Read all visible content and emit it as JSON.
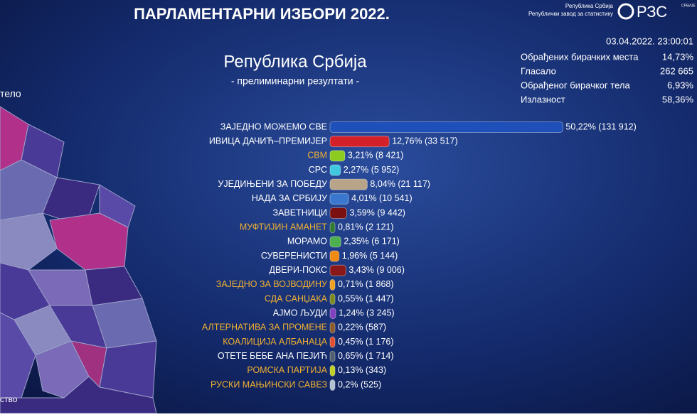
{
  "header": {
    "title": "ПАРЛАМЕНТАРНИ ИЗБОРИ 2022.",
    "org_line1": "Република Србија",
    "org_line2": "Републички завод за статистику",
    "logo": "РЗС",
    "logo_sub": "СРБИЈЕ",
    "timestamp": "03.04.2022. 23:00:01"
  },
  "stats": [
    {
      "label": "Обрађених бирачких места",
      "value": "14,73%"
    },
    {
      "label": "Гласало",
      "value": "262 665"
    },
    {
      "label": "Обрађеног бирачког тела",
      "value": "6,93%"
    },
    {
      "label": "Излазност",
      "value": "58,36%"
    }
  ],
  "left_panel": [
    "тело",
    "ство"
  ],
  "chart_data": {
    "type": "bar",
    "title": "Република Србија",
    "subtitle": "- прелиминарни резултати -",
    "categories": [
      "ЗАЈЕДНО МОЖЕМО СВЕ",
      "ИВИЦА ДАЧИЋ–ПРЕМИЈЕР",
      "СВМ",
      "СРС",
      "УЈЕДИЊЕНИ ЗА ПОБЕДУ",
      "НАДА ЗА СРБИЈУ",
      "ЗАВЕТНИЦИ",
      "МУФТИЈИН АМАНЕТ",
      "МОРАМО",
      "СУВЕРЕНИСТИ",
      "ДВЕРИ-ПОКС",
      "ЗАЈЕДНО ЗА ВОЈВОДИНУ",
      "СДА САНЏАКА",
      "АЈМО ЉУДИ",
      "АЛТЕРНАТИВА ЗА ПРОМЕНЕ",
      "КОАЛИЦИЈА АЛБАНАЦА",
      "ОТЕТЕ БЕБЕ АНА ПЕЈИЋ",
      "РОМСКА ПАРТИЈА",
      "РУСКИ МАЊИНСКИ САВЕЗ"
    ],
    "values": [
      50.22,
      12.76,
      3.21,
      2.27,
      8.04,
      4.01,
      3.59,
      0.81,
      2.35,
      1.96,
      3.43,
      0.71,
      0.55,
      1.24,
      0.22,
      0.45,
      0.65,
      0.13,
      0.2
    ],
    "value_labels": [
      "50,22% (131 912)",
      "12,76% (33 517)",
      "3,21% (8 421)",
      "2,27% (5 952)",
      "8,04% (21 117)",
      "4,01% (10 541)",
      "3,59% (9 442)",
      "0,81% (2 121)",
      "2,35% (6 171)",
      "1,96% (5 144)",
      "3,43% (9 006)",
      "0,71% (1 868)",
      "0,55% (1 447)",
      "1,24% (3 245)",
      "0,22% (587)",
      "0,45% (1 176)",
      "0,65% (1 714)",
      "0,13% (343)",
      "0,2% (525)"
    ],
    "colors": [
      "#1f4fb8",
      "#d42028",
      "#8ccc20",
      "#40c8e0",
      "#b8a488",
      "#3a78d0",
      "#7a1010",
      "#2f7a30",
      "#4caf50",
      "#f08a10",
      "#8a1818",
      "#f0a020",
      "#7a8a20",
      "#8040c0",
      "#8a5a2a",
      "#e05030",
      "#506070",
      "#c0d020",
      "#b0c0d0"
    ],
    "label_colors": [
      "#ffffff",
      "#ffffff",
      "#f0b030",
      "#ffffff",
      "#ffffff",
      "#ffffff",
      "#ffffff",
      "#f0b030",
      "#ffffff",
      "#ffffff",
      "#ffffff",
      "#f0b030",
      "#f0b030",
      "#ffffff",
      "#f0b030",
      "#f0b030",
      "#ffffff",
      "#f0b030",
      "#f0b030"
    ]
  }
}
